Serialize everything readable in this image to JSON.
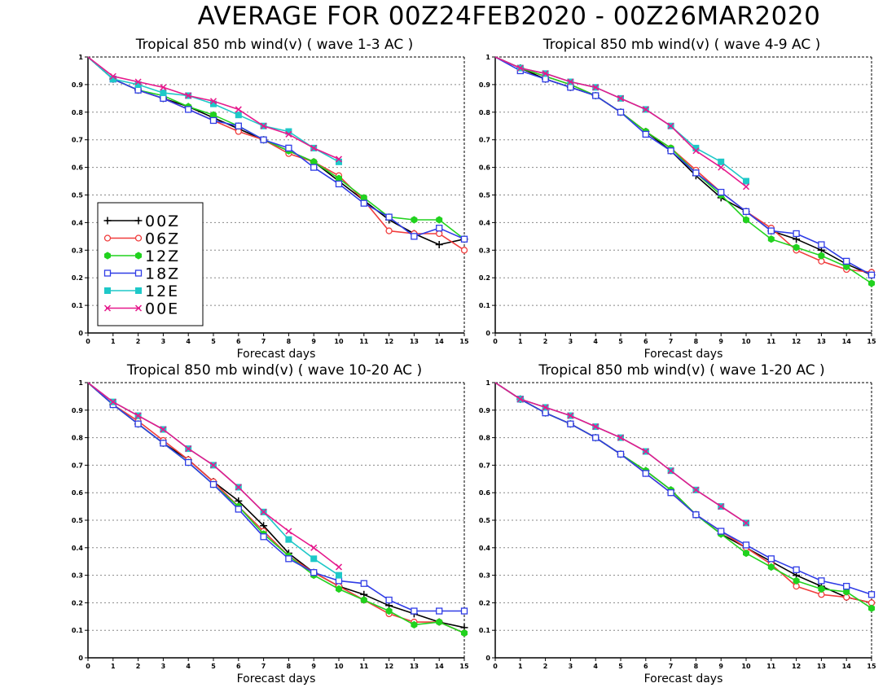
{
  "page_title": "AVERAGE FOR 00Z24FEB2020 - 00Z26MAR2020",
  "legend": {
    "entries": [
      {
        "label": "00Z",
        "color": "#000000",
        "marker": "plus"
      },
      {
        "label": "06Z",
        "color": "#f03c3c",
        "marker": "circle"
      },
      {
        "label": "12Z",
        "color": "#21d21e",
        "marker": "filled-hexagon"
      },
      {
        "label": "18Z",
        "color": "#2f3ce6",
        "marker": "square"
      },
      {
        "label": "12E",
        "color": "#1ec8c8",
        "marker": "filled-square"
      },
      {
        "label": "00E",
        "color": "#e6198c",
        "marker": "x"
      }
    ],
    "placement": "lower-left of top-left panel"
  },
  "chart_data": [
    {
      "type": "line",
      "title": "Tropical 850 mb wind(v) ( wave 1-3 AC )",
      "xlabel": "Forecast days",
      "ylabel": "",
      "xlim": [
        0,
        15
      ],
      "ylim": [
        0,
        1
      ],
      "xticks": [
        "0",
        "1",
        "2",
        "3",
        "4",
        "5",
        "6",
        "7",
        "8",
        "9",
        "10",
        "11",
        "12",
        "13",
        "14",
        "15"
      ],
      "yticks": [
        "0",
        "0.1",
        "0.2",
        "0.3",
        "0.4",
        "0.5",
        "0.6",
        "0.7",
        "0.8",
        "0.9",
        "1"
      ],
      "grid": "horizontal dotted",
      "series": [
        {
          "name": "00Z",
          "x": [
            0,
            1,
            2,
            3,
            4,
            5,
            6,
            7,
            8,
            9,
            10,
            11,
            12,
            13,
            14,
            15
          ],
          "values": [
            1,
            0.92,
            0.88,
            0.85,
            0.82,
            0.78,
            0.74,
            0.7,
            0.66,
            0.62,
            0.55,
            0.48,
            0.41,
            0.36,
            0.32,
            0.34
          ]
        },
        {
          "name": "06Z",
          "x": [
            0,
            1,
            2,
            3,
            4,
            5,
            6,
            7,
            8,
            9,
            10,
            11,
            12,
            13,
            14,
            15
          ],
          "values": [
            1,
            0.92,
            0.88,
            0.85,
            0.81,
            0.77,
            0.73,
            0.7,
            0.65,
            0.62,
            0.57,
            0.48,
            0.37,
            0.36,
            0.36,
            0.3
          ]
        },
        {
          "name": "12Z",
          "x": [
            0,
            1,
            2,
            3,
            4,
            5,
            6,
            7,
            8,
            9,
            10,
            11,
            12,
            13,
            14,
            15
          ],
          "values": [
            1,
            0.92,
            0.88,
            0.86,
            0.82,
            0.79,
            0.75,
            0.7,
            0.66,
            0.62,
            0.56,
            0.49,
            0.42,
            0.41,
            0.41,
            0.34
          ]
        },
        {
          "name": "18Z",
          "x": [
            0,
            1,
            2,
            3,
            4,
            5,
            6,
            7,
            8,
            9,
            10,
            11,
            12,
            13,
            14,
            15
          ],
          "values": [
            1,
            0.92,
            0.88,
            0.85,
            0.81,
            0.77,
            0.75,
            0.7,
            0.67,
            0.6,
            0.54,
            0.47,
            0.42,
            0.35,
            0.38,
            0.34
          ]
        },
        {
          "name": "12E",
          "x": [
            0,
            1,
            2,
            3,
            4,
            5,
            6,
            7,
            8,
            9,
            10
          ],
          "values": [
            1,
            0.92,
            0.9,
            0.87,
            0.86,
            0.83,
            0.79,
            0.75,
            0.73,
            0.67,
            0.62
          ]
        },
        {
          "name": "00E",
          "x": [
            0,
            1,
            2,
            3,
            4,
            5,
            6,
            7,
            8,
            9,
            10
          ],
          "values": [
            1,
            0.93,
            0.91,
            0.89,
            0.86,
            0.84,
            0.81,
            0.75,
            0.72,
            0.67,
            0.63
          ]
        }
      ]
    },
    {
      "type": "line",
      "title": "Tropical 850 mb wind(v) ( wave 4-9 AC )",
      "xlabel": "Forecast days",
      "ylabel": "",
      "xlim": [
        0,
        15
      ],
      "ylim": [
        0,
        1
      ],
      "xticks": [
        "0",
        "1",
        "2",
        "3",
        "4",
        "5",
        "6",
        "7",
        "8",
        "9",
        "10",
        "11",
        "12",
        "13",
        "14",
        "15"
      ],
      "yticks": [
        "0",
        "0.1",
        "0.2",
        "0.3",
        "0.4",
        "0.5",
        "0.6",
        "0.7",
        "0.8",
        "0.9",
        "1"
      ],
      "grid": "horizontal dotted",
      "series": [
        {
          "name": "00Z",
          "x": [
            0,
            1,
            2,
            3,
            4,
            5,
            6,
            7,
            8,
            9,
            10,
            11,
            12,
            13,
            14,
            15
          ],
          "values": [
            1,
            0.96,
            0.92,
            0.89,
            0.86,
            0.8,
            0.73,
            0.66,
            0.57,
            0.49,
            0.44,
            0.37,
            0.34,
            0.3,
            0.25,
            0.21
          ]
        },
        {
          "name": "06Z",
          "x": [
            0,
            1,
            2,
            3,
            4,
            5,
            6,
            7,
            8,
            9,
            10,
            11,
            12,
            13,
            14,
            15
          ],
          "values": [
            1,
            0.96,
            0.93,
            0.9,
            0.86,
            0.8,
            0.73,
            0.67,
            0.59,
            0.51,
            0.44,
            0.38,
            0.3,
            0.26,
            0.23,
            0.22
          ]
        },
        {
          "name": "12Z",
          "x": [
            0,
            1,
            2,
            3,
            4,
            5,
            6,
            7,
            8,
            9,
            10,
            11,
            12,
            13,
            14,
            15
          ],
          "values": [
            1,
            0.96,
            0.93,
            0.9,
            0.86,
            0.8,
            0.73,
            0.67,
            0.58,
            0.5,
            0.41,
            0.34,
            0.31,
            0.28,
            0.24,
            0.18
          ]
        },
        {
          "name": "18Z",
          "x": [
            0,
            1,
            2,
            3,
            4,
            5,
            6,
            7,
            8,
            9,
            10,
            11,
            12,
            13,
            14,
            15
          ],
          "values": [
            1,
            0.95,
            0.92,
            0.89,
            0.86,
            0.8,
            0.72,
            0.66,
            0.58,
            0.51,
            0.44,
            0.37,
            0.36,
            0.32,
            0.26,
            0.21
          ]
        },
        {
          "name": "12E",
          "x": [
            0,
            1,
            2,
            3,
            4,
            5,
            6,
            7,
            8,
            9,
            10
          ],
          "values": [
            1,
            0.96,
            0.94,
            0.91,
            0.89,
            0.85,
            0.81,
            0.75,
            0.67,
            0.62,
            0.55
          ]
        },
        {
          "name": "00E",
          "x": [
            0,
            1,
            2,
            3,
            4,
            5,
            6,
            7,
            8,
            9,
            10
          ],
          "values": [
            1,
            0.96,
            0.94,
            0.91,
            0.89,
            0.85,
            0.81,
            0.75,
            0.66,
            0.6,
            0.53
          ]
        }
      ]
    },
    {
      "type": "line",
      "title": "Tropical 850 mb wind(v) ( wave 10-20 AC )",
      "xlabel": "Forecast days",
      "ylabel": "",
      "xlim": [
        0,
        15
      ],
      "ylim": [
        0,
        1
      ],
      "xticks": [
        "0",
        "1",
        "2",
        "3",
        "4",
        "5",
        "6",
        "7",
        "8",
        "9",
        "10",
        "11",
        "12",
        "13",
        "14",
        "15"
      ],
      "yticks": [
        "0",
        "0.1",
        "0.2",
        "0.3",
        "0.4",
        "0.5",
        "0.6",
        "0.7",
        "0.8",
        "0.9",
        "1"
      ],
      "grid": "horizontal dotted",
      "series": [
        {
          "name": "00Z",
          "x": [
            0,
            1,
            2,
            3,
            4,
            5,
            6,
            7,
            8,
            9,
            10,
            11,
            12,
            13,
            14,
            15
          ],
          "values": [
            1,
            0.92,
            0.85,
            0.78,
            0.72,
            0.64,
            0.57,
            0.48,
            0.38,
            0.31,
            0.26,
            0.23,
            0.19,
            0.16,
            0.13,
            0.11
          ]
        },
        {
          "name": "06Z",
          "x": [
            0,
            1,
            2,
            3,
            4,
            5,
            6,
            7,
            8,
            9,
            10,
            11,
            12,
            13,
            14,
            15
          ],
          "values": [
            1,
            0.92,
            0.86,
            0.79,
            0.72,
            0.64,
            0.55,
            0.46,
            0.37,
            0.31,
            0.26,
            0.21,
            0.16,
            0.13,
            0.13,
            0.09
          ]
        },
        {
          "name": "12Z",
          "x": [
            0,
            1,
            2,
            3,
            4,
            5,
            6,
            7,
            8,
            9,
            10,
            11,
            12,
            13,
            14,
            15
          ],
          "values": [
            1,
            0.92,
            0.85,
            0.78,
            0.71,
            0.63,
            0.55,
            0.45,
            0.37,
            0.3,
            0.25,
            0.21,
            0.17,
            0.12,
            0.13,
            0.09
          ]
        },
        {
          "name": "18Z",
          "x": [
            0,
            1,
            2,
            3,
            4,
            5,
            6,
            7,
            8,
            9,
            10,
            11,
            12,
            13,
            14,
            15
          ],
          "values": [
            1,
            0.92,
            0.85,
            0.78,
            0.71,
            0.63,
            0.54,
            0.44,
            0.36,
            0.31,
            0.28,
            0.27,
            0.21,
            0.17,
            0.17,
            0.17
          ]
        },
        {
          "name": "12E",
          "x": [
            0,
            1,
            2,
            3,
            4,
            5,
            6,
            7,
            8,
            9,
            10
          ],
          "values": [
            1,
            0.93,
            0.88,
            0.83,
            0.76,
            0.7,
            0.62,
            0.53,
            0.43,
            0.36,
            0.3
          ]
        },
        {
          "name": "00E",
          "x": [
            0,
            1,
            2,
            3,
            4,
            5,
            6,
            7,
            8,
            9,
            10
          ],
          "values": [
            1,
            0.93,
            0.88,
            0.83,
            0.76,
            0.7,
            0.62,
            0.53,
            0.46,
            0.4,
            0.33
          ]
        }
      ]
    },
    {
      "type": "line",
      "title": "Tropical 850 mb wind(v) ( wave 1-20 AC )",
      "xlabel": "Forecast days",
      "ylabel": "",
      "xlim": [
        0,
        15
      ],
      "ylim": [
        0,
        1
      ],
      "xticks": [
        "0",
        "1",
        "2",
        "3",
        "4",
        "5",
        "6",
        "7",
        "8",
        "9",
        "10",
        "11",
        "12",
        "13",
        "14",
        "15"
      ],
      "yticks": [
        "0",
        "0.1",
        "0.2",
        "0.3",
        "0.4",
        "0.5",
        "0.6",
        "0.7",
        "0.8",
        "0.9",
        "1"
      ],
      "grid": "horizontal dotted",
      "series": [
        {
          "name": "00Z",
          "x": [
            0,
            1,
            2,
            3,
            4,
            5,
            6,
            7,
            8,
            9,
            10,
            11,
            12,
            13,
            14,
            15
          ],
          "values": [
            1,
            0.94,
            0.89,
            0.85,
            0.8,
            0.74,
            0.68,
            0.61,
            0.52,
            0.45,
            0.4,
            0.35,
            0.3,
            0.26,
            0.22,
            0.2
          ]
        },
        {
          "name": "06Z",
          "x": [
            0,
            1,
            2,
            3,
            4,
            5,
            6,
            7,
            8,
            9,
            10,
            11,
            12,
            13,
            14,
            15
          ],
          "values": [
            1,
            0.94,
            0.89,
            0.85,
            0.8,
            0.74,
            0.67,
            0.6,
            0.52,
            0.46,
            0.4,
            0.34,
            0.26,
            0.23,
            0.22,
            0.2
          ]
        },
        {
          "name": "12Z",
          "x": [
            0,
            1,
            2,
            3,
            4,
            5,
            6,
            7,
            8,
            9,
            10,
            11,
            12,
            13,
            14,
            15
          ],
          "values": [
            1,
            0.94,
            0.89,
            0.85,
            0.8,
            0.74,
            0.68,
            0.61,
            0.52,
            0.45,
            0.38,
            0.33,
            0.28,
            0.25,
            0.24,
            0.18
          ]
        },
        {
          "name": "18Z",
          "x": [
            0,
            1,
            2,
            3,
            4,
            5,
            6,
            7,
            8,
            9,
            10,
            11,
            12,
            13,
            14,
            15
          ],
          "values": [
            1,
            0.94,
            0.89,
            0.85,
            0.8,
            0.74,
            0.67,
            0.6,
            0.52,
            0.46,
            0.41,
            0.36,
            0.32,
            0.28,
            0.26,
            0.23
          ]
        },
        {
          "name": "12E",
          "x": [
            0,
            1,
            2,
            3,
            4,
            5,
            6,
            7,
            8,
            9,
            10
          ],
          "values": [
            1,
            0.94,
            0.91,
            0.88,
            0.84,
            0.8,
            0.75,
            0.68,
            0.61,
            0.55,
            0.49
          ]
        },
        {
          "name": "00E",
          "x": [
            0,
            1,
            2,
            3,
            4,
            5,
            6,
            7,
            8,
            9,
            10
          ],
          "values": [
            1,
            0.94,
            0.91,
            0.88,
            0.84,
            0.8,
            0.75,
            0.68,
            0.61,
            0.55,
            0.49
          ]
        }
      ]
    }
  ]
}
